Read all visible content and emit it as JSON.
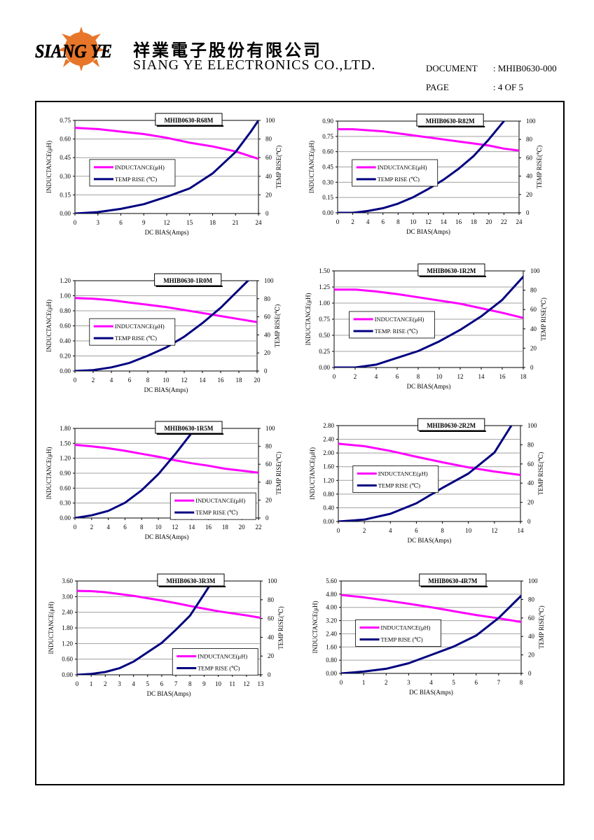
{
  "header": {
    "logo_text": "SIANG YE",
    "company_cn": "祥業電子股份有限公司",
    "company_en": "SIANG YE ELECTRONICS CO.,LTD.",
    "document_label": "DOCUMENT",
    "document_value": ": MHIB0630-000",
    "page_label": "PAGE",
    "page_value": ": 4 OF 5"
  },
  "colors": {
    "inductance": "#ff00ff",
    "temp_rise": "#000080",
    "grid": "#a0a0a0",
    "plot_bg": "#ffffff"
  },
  "chart_data": [
    {
      "type": "line",
      "title": "MHIB0630-R68M",
      "xlabel": "DC BIAS(Amps)",
      "ylabel": "INDUCTANCE(μH)",
      "y2label": "TEMP RISE(℃)",
      "xlim": [
        0,
        24
      ],
      "xticks": [
        "0",
        "3",
        "6",
        "9",
        "12",
        "15",
        "18",
        "21",
        "24"
      ],
      "ylim": [
        0,
        0.75
      ],
      "yticks": [
        "0.00",
        "0.15",
        "0.30",
        "0.45",
        "0.60",
        "0.75"
      ],
      "y2lim": [
        0,
        100
      ],
      "y2ticks": [
        "0",
        "20",
        "40",
        "60",
        "80",
        "100"
      ],
      "legend_position": "center-left",
      "series": [
        {
          "name": "INDUCTANCE(μH)",
          "axis": "left",
          "x": [
            0,
            3,
            6,
            9,
            12,
            15,
            18,
            21,
            24
          ],
          "values": [
            0.69,
            0.68,
            0.66,
            0.64,
            0.61,
            0.57,
            0.54,
            0.5,
            0.44
          ]
        },
        {
          "name": "TEMP RISE (℃)",
          "axis": "right",
          "x": [
            0,
            3,
            6,
            9,
            12,
            15,
            18,
            21,
            23,
            24
          ],
          "values": [
            0,
            1.5,
            5,
            10,
            18,
            27,
            43,
            66,
            88,
            100
          ]
        }
      ]
    },
    {
      "type": "line",
      "title": "MHIB0630-R82M",
      "xlabel": "DC BIAS(Amps)",
      "ylabel": "INDUCTANCE(μH)",
      "y2label": "TEMP RISE(℃)",
      "xlim": [
        0,
        24
      ],
      "xticks": [
        "0",
        "2",
        "4",
        "6",
        "8",
        "10",
        "12",
        "14",
        "16",
        "18",
        "20",
        "22",
        "24"
      ],
      "ylim": [
        0,
        0.9
      ],
      "yticks": [
        "0.00",
        "0.15",
        "0.30",
        "0.45",
        "0.60",
        "0.75",
        "0.90"
      ],
      "y2lim": [
        0,
        100
      ],
      "y2ticks": [
        "0",
        "20",
        "40",
        "60",
        "80",
        "100"
      ],
      "legend_position": "center-left",
      "series": [
        {
          "name": "INDUCTANCE(μH)",
          "axis": "left",
          "x": [
            0,
            2,
            4,
            6,
            8,
            10,
            12,
            14,
            16,
            18,
            20,
            22,
            24
          ],
          "values": [
            0.82,
            0.82,
            0.81,
            0.8,
            0.78,
            0.76,
            0.74,
            0.72,
            0.7,
            0.68,
            0.66,
            0.63,
            0.61
          ]
        },
        {
          "name": "TEMP RISE (℃)",
          "axis": "right",
          "x": [
            0,
            2,
            4,
            6,
            8,
            10,
            12,
            14,
            16,
            18,
            20,
            22
          ],
          "values": [
            0,
            0,
            2,
            5,
            10,
            17,
            26,
            36,
            48,
            62,
            80,
            100
          ]
        }
      ]
    },
    {
      "type": "line",
      "title": "MHIB0630-1R0M",
      "xlabel": "DC BIAS(Amps)",
      "ylabel": "INDUCTANCE(μH)",
      "y2label": "TEMP RISE(℃)",
      "xlim": [
        0,
        20
      ],
      "xticks": [
        "0",
        "2",
        "4",
        "6",
        "8",
        "10",
        "12",
        "14",
        "16",
        "18",
        "20"
      ],
      "ylim": [
        0,
        1.2
      ],
      "yticks": [
        "0.00",
        "0.20",
        "0.40",
        "0.60",
        "0.80",
        "1.00",
        "1.20"
      ],
      "y2lim": [
        0,
        100
      ],
      "y2ticks": [
        "0",
        "20",
        "40",
        "60",
        "80",
        "100"
      ],
      "legend_position": "center-left",
      "series": [
        {
          "name": "INDUCTANCE(μH)",
          "axis": "left",
          "x": [
            0,
            2,
            4,
            6,
            8,
            10,
            12,
            14,
            16,
            18,
            20
          ],
          "values": [
            0.97,
            0.96,
            0.94,
            0.91,
            0.88,
            0.85,
            0.81,
            0.77,
            0.73,
            0.69,
            0.65
          ]
        },
        {
          "name": "TEMP RISE (℃)",
          "axis": "right",
          "x": [
            0,
            2,
            4,
            6,
            8,
            10,
            12,
            14,
            16,
            18,
            19
          ],
          "values": [
            0,
            1,
            4,
            9,
            17,
            26,
            38,
            53,
            70,
            90,
            100
          ]
        }
      ]
    },
    {
      "type": "line",
      "title": "MHIB0630-1R2M",
      "xlabel": "DC BIAS(Amps)",
      "ylabel": "INDUCTANCE(μH)",
      "y2label": "TEMP RISE(℃)",
      "xlim": [
        0,
        18
      ],
      "xticks": [
        "0",
        "2",
        "4",
        "6",
        "8",
        "10",
        "12",
        "14",
        "16",
        "18"
      ],
      "ylim": [
        0,
        1.5
      ],
      "yticks": [
        "0.00",
        "0.25",
        "0.50",
        "0.75",
        "1.00",
        "1.25",
        "1.50"
      ],
      "y2lim": [
        0,
        100
      ],
      "y2ticks": [
        "0",
        "20",
        "40",
        "60",
        "80",
        "100"
      ],
      "legend_position": "center-left",
      "series": [
        {
          "name": "INDUCTANCE(μH)",
          "axis": "left",
          "x": [
            0,
            2,
            4,
            6,
            8,
            10,
            12,
            14,
            16,
            18
          ],
          "values": [
            1.21,
            1.21,
            1.18,
            1.14,
            1.09,
            1.04,
            0.99,
            0.92,
            0.85,
            0.77
          ]
        },
        {
          "name": "TEMP. RISE (℃)",
          "axis": "right",
          "x": [
            0,
            2,
            4,
            6,
            8,
            10,
            12,
            14,
            16,
            18
          ],
          "values": [
            0,
            0,
            3,
            10,
            17,
            27,
            39,
            53,
            70,
            94
          ]
        }
      ]
    },
    {
      "type": "line",
      "title": "MHIB0630-1R5M",
      "xlabel": "DC BIAS(Amps)",
      "ylabel": "INDUCTANCE(μH)",
      "y2label": "TEMP RISE(℃)",
      "xlim": [
        0,
        22
      ],
      "xticks": [
        "0",
        "2",
        "4",
        "6",
        "8",
        "10",
        "12",
        "14",
        "16",
        "18",
        "20",
        "22"
      ],
      "ylim": [
        0,
        1.8
      ],
      "yticks": [
        "0.00",
        "0.30",
        "0.60",
        "0.90",
        "1.20",
        "1.50",
        "1.80"
      ],
      "y2lim": [
        0,
        100
      ],
      "y2ticks": [
        "0",
        "20",
        "40",
        "60",
        "80",
        "100"
      ],
      "legend_position": "bottom-right",
      "series": [
        {
          "name": "INDUCTANCE(μH)",
          "axis": "left",
          "x": [
            0,
            2,
            4,
            6,
            8,
            10,
            12,
            14,
            16,
            18,
            20,
            22
          ],
          "values": [
            1.47,
            1.44,
            1.4,
            1.35,
            1.29,
            1.23,
            1.16,
            1.1,
            1.05,
            0.99,
            0.95,
            0.91
          ]
        },
        {
          "name": "TEMP RISE (℃)",
          "axis": "right",
          "x": [
            0,
            2,
            4,
            6,
            8,
            10,
            12,
            14,
            14.5
          ],
          "values": [
            0,
            3,
            8,
            17,
            31,
            49,
            71,
            95,
            100
          ]
        }
      ]
    },
    {
      "type": "line",
      "title": "MHIB0630-2R2M",
      "xlabel": "DC BIAS(Amps)",
      "ylabel": "INDUCTANCE(μH)",
      "y2label": "TEMP RISE(℃)",
      "xlim": [
        0,
        14
      ],
      "xticks": [
        "0",
        "2",
        "4",
        "6",
        "8",
        "10",
        "12",
        "14"
      ],
      "ylim": [
        0,
        2.8
      ],
      "yticks": [
        "0.00",
        "0.40",
        "0.80",
        "1.20",
        "1.60",
        "2.00",
        "2.40",
        "2.80"
      ],
      "y2lim": [
        0,
        100
      ],
      "y2ticks": [
        "0",
        "20",
        "40",
        "60",
        "80",
        "100"
      ],
      "legend_position": "center-left",
      "series": [
        {
          "name": "INDUCTANCE(μH)",
          "axis": "left",
          "x": [
            0,
            2,
            4,
            6,
            8,
            10,
            12,
            14
          ],
          "values": [
            2.27,
            2.2,
            2.06,
            1.89,
            1.73,
            1.58,
            1.46,
            1.36
          ]
        },
        {
          "name": "TEMP RISE (℃)",
          "axis": "right",
          "x": [
            0,
            2,
            4,
            6,
            8,
            10,
            12,
            13.3
          ],
          "values": [
            0,
            2,
            8,
            19,
            35,
            50,
            72,
            100
          ]
        }
      ]
    },
    {
      "type": "line",
      "title": "MHIB0630-3R3M",
      "xlabel": "DC BIAS(Amps)",
      "ylabel": "INDUCTANCE(μH)",
      "y2label": "TEMP RISE(℃)",
      "xlim": [
        0,
        13
      ],
      "xticks": [
        "0",
        "1",
        "2",
        "3",
        "4",
        "5",
        "6",
        "7",
        "8",
        "9",
        "10",
        "11",
        "12",
        "13"
      ],
      "ylim": [
        0,
        3.6
      ],
      "yticks": [
        "0.00",
        "0.60",
        "1.20",
        "1.80",
        "2.40",
        "3.00",
        "3.60"
      ],
      "y2lim": [
        0,
        100
      ],
      "y2ticks": [
        "0",
        "20",
        "40",
        "60",
        "80",
        "100"
      ],
      "legend_position": "bottom-right",
      "series": [
        {
          "name": "INDUCTANCE(μH)",
          "axis": "left",
          "x": [
            0,
            1,
            2,
            3,
            4,
            5,
            6,
            7,
            8,
            9,
            10,
            11,
            12,
            13
          ],
          "values": [
            3.22,
            3.21,
            3.17,
            3.1,
            3.03,
            2.94,
            2.85,
            2.75,
            2.64,
            2.54,
            2.44,
            2.36,
            2.28,
            2.19
          ]
        },
        {
          "name": "TEMP RISE (℃)",
          "axis": "right",
          "x": [
            0,
            1,
            2,
            3,
            4,
            5,
            6,
            7,
            8,
            9,
            9.6
          ],
          "values": [
            0,
            1,
            3,
            7,
            14,
            24,
            34,
            48,
            63,
            86,
            100
          ]
        }
      ]
    },
    {
      "type": "line",
      "title": "MHIB0630-4R7M",
      "xlabel": "DC BIAS(Amps)",
      "ylabel": "INDUCTANCE(μH)",
      "y2label": "TEMP RISE(℃)",
      "xlim": [
        0,
        8
      ],
      "xticks": [
        "0",
        "1",
        "2",
        "3",
        "4",
        "5",
        "6",
        "7",
        "8"
      ],
      "ylim": [
        0,
        5.6
      ],
      "yticks": [
        "0.00",
        "0.80",
        "1.60",
        "2.40",
        "3.20",
        "4.00",
        "4.80",
        "5.60"
      ],
      "y2lim": [
        0,
        100
      ],
      "y2ticks": [
        "0",
        "20",
        "40",
        "60",
        "80",
        "100"
      ],
      "legend_position": "center-left",
      "series": [
        {
          "name": "INDUCTANCE(μH)",
          "axis": "left",
          "x": [
            0,
            1,
            2,
            3,
            4,
            5,
            6,
            7,
            8
          ],
          "values": [
            4.75,
            4.61,
            4.42,
            4.22,
            4.01,
            3.77,
            3.54,
            3.34,
            3.12
          ]
        },
        {
          "name": "TEMP RISE (℃)",
          "axis": "right",
          "x": [
            0,
            1,
            2,
            3,
            4,
            5,
            6,
            7,
            8
          ],
          "values": [
            0,
            2,
            5,
            11,
            20,
            29,
            41,
            60,
            84
          ]
        }
      ]
    }
  ]
}
